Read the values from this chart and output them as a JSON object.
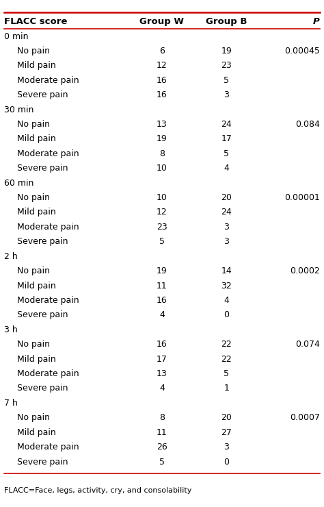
{
  "headers": [
    "FLACC score",
    "Group W",
    "Group B",
    "P"
  ],
  "top_line_color": "#cc0000",
  "bottom_line_color": "#cc0000",
  "header_line_color": "#cc0000",
  "background_color": "#ffffff",
  "text_color": "#000000",
  "footnote": "FLACC=Face, legs, activity, cry, and consolability",
  "sections": [
    {
      "time": "0 min",
      "rows": [
        {
          "label": "No pain",
          "gw": "6",
          "gb": "19",
          "p": "0.00045"
        },
        {
          "label": "Mild pain",
          "gw": "12",
          "gb": "23",
          "p": ""
        },
        {
          "label": "Moderate pain",
          "gw": "16",
          "gb": "5",
          "p": ""
        },
        {
          "label": "Severe pain",
          "gw": "16",
          "gb": "3",
          "p": ""
        }
      ]
    },
    {
      "time": "30 min",
      "rows": [
        {
          "label": "No pain",
          "gw": "13",
          "gb": "24",
          "p": "0.084"
        },
        {
          "label": "Mild pain",
          "gw": "19",
          "gb": "17",
          "p": ""
        },
        {
          "label": "Moderate pain",
          "gw": "8",
          "gb": "5",
          "p": ""
        },
        {
          "label": "Severe pain",
          "gw": "10",
          "gb": "4",
          "p": ""
        }
      ]
    },
    {
      "time": "60 min",
      "rows": [
        {
          "label": "No pain",
          "gw": "10",
          "gb": "20",
          "p": "0.00001"
        },
        {
          "label": "Mild pain",
          "gw": "12",
          "gb": "24",
          "p": ""
        },
        {
          "label": "Moderate pain",
          "gw": "23",
          "gb": "3",
          "p": ""
        },
        {
          "label": "Severe pain",
          "gw": "5",
          "gb": "3",
          "p": ""
        }
      ]
    },
    {
      "time": "2 h",
      "rows": [
        {
          "label": "No pain",
          "gw": "19",
          "gb": "14",
          "p": "0.0002"
        },
        {
          "label": "Mild pain",
          "gw": "11",
          "gb": "32",
          "p": ""
        },
        {
          "label": "Moderate pain",
          "gw": "16",
          "gb": "4",
          "p": ""
        },
        {
          "label": "Severe pain",
          "gw": "4",
          "gb": "0",
          "p": ""
        }
      ]
    },
    {
      "time": "3 h",
      "rows": [
        {
          "label": "No pain",
          "gw": "16",
          "gb": "22",
          "p": "0.074"
        },
        {
          "label": "Mild pain",
          "gw": "17",
          "gb": "22",
          "p": ""
        },
        {
          "label": "Moderate pain",
          "gw": "13",
          "gb": "5",
          "p": ""
        },
        {
          "label": "Severe pain",
          "gw": "4",
          "gb": "1",
          "p": ""
        }
      ]
    },
    {
      "time": "7 h",
      "rows": [
        {
          "label": "No pain",
          "gw": "8",
          "gb": "20",
          "p": "0.0007"
        },
        {
          "label": "Mild pain",
          "gw": "11",
          "gb": "27",
          "p": ""
        },
        {
          "label": "Moderate pain",
          "gw": "26",
          "gb": "3",
          "p": ""
        },
        {
          "label": "Severe pain",
          "gw": "5",
          "gb": "0",
          "p": ""
        }
      ]
    }
  ]
}
